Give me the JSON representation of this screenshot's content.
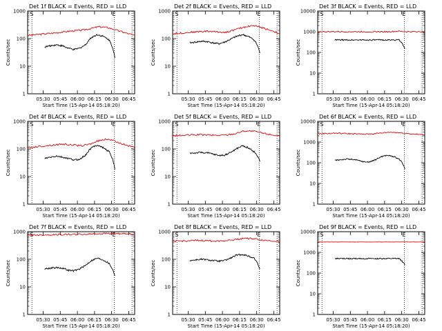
{
  "chart_data": [
    {
      "type": "line",
      "title": "Det 1f BLACK = Events, RED = LLD",
      "xlabel": "Start Time (15-Apr-14 05:18:20)",
      "ylabel": "Counts/sec",
      "ylim": [
        1,
        1000
      ],
      "yscale": "log",
      "x_ticks": [
        "05:30",
        "05:45",
        "06:00",
        "06:15",
        "06:30",
        "06:45"
      ],
      "y_ticks": [
        "1",
        "10",
        "100",
        "1000"
      ],
      "markers": [
        "S",
        "E"
      ],
      "series": [
        {
          "name": "LLD",
          "color": "#e00000",
          "values": [
            130,
            140,
            150,
            160,
            175,
            190,
            200,
            230,
            270,
            250,
            200,
            160,
            130
          ]
        },
        {
          "name": "Events",
          "color": "#000000",
          "values": [
            50,
            55,
            60,
            55,
            45,
            40,
            45,
            60,
            110,
            140,
            120,
            90,
            20
          ]
        }
      ]
    },
    {
      "type": "line",
      "title": "Det 2f BLACK = Events, RED = LLD",
      "xlabel": "Start Time (15-Apr-14 05:18:20)",
      "ylabel": "Counts/sec",
      "ylim": [
        1,
        1000
      ],
      "yscale": "log",
      "x_ticks": [
        "05:30",
        "05:45",
        "06:00",
        "06:15",
        "06:30",
        "06:45"
      ],
      "y_ticks": [
        "1",
        "10",
        "100",
        "1000"
      ],
      "markers": [
        "S",
        "E"
      ],
      "series": [
        {
          "name": "LLD",
          "color": "#e00000",
          "values": [
            150,
            160,
            170,
            180,
            185,
            175,
            170,
            210,
            260,
            300,
            250,
            200,
            150
          ]
        },
        {
          "name": "Events",
          "color": "#000000",
          "values": [
            70,
            75,
            80,
            78,
            70,
            65,
            75,
            95,
            120,
            140,
            120,
            90,
            30
          ]
        }
      ]
    },
    {
      "type": "line",
      "title": "Det 3f BLACK = Events, RED = LLD",
      "xlabel": "Start Time (15-Apr-14 05:18:20)",
      "ylabel": "Counts/sec",
      "ylim": [
        1,
        10000
      ],
      "yscale": "log",
      "x_ticks": [
        "05:30",
        "05:45",
        "06:00",
        "06:15",
        "06:30",
        "06:45"
      ],
      "y_ticks": [
        "1",
        "10",
        "100",
        "1000",
        "10000"
      ],
      "markers": [
        "S",
        "E"
      ],
      "series": [
        {
          "name": "LLD",
          "color": "#e00000",
          "values": [
            1000,
            1000,
            1000,
            1000,
            1000,
            1000,
            1000,
            1000,
            1000,
            1050,
            1000,
            1000,
            1000
          ]
        },
        {
          "name": "Events",
          "color": "#000000",
          "values": [
            400,
            400,
            400,
            400,
            400,
            400,
            400,
            400,
            400,
            400,
            400,
            400,
            150
          ]
        }
      ]
    },
    {
      "type": "line",
      "title": "Det 4f BLACK = Events, RED = LLD",
      "xlabel": "Start Time (15-Apr-14 05:18:20)",
      "ylabel": "Counts/sec",
      "ylim": [
        1,
        1000
      ],
      "yscale": "log",
      "x_ticks": [
        "05:30",
        "05:45",
        "06:00",
        "06:15",
        "06:30",
        "06:45"
      ],
      "y_ticks": [
        "1",
        "10",
        "100",
        "1000"
      ],
      "markers": [
        "S",
        "E"
      ],
      "series": [
        {
          "name": "LLD",
          "color": "#e00000",
          "values": [
            110,
            120,
            130,
            140,
            150,
            140,
            130,
            150,
            200,
            230,
            180,
            140,
            110
          ]
        },
        {
          "name": "Events",
          "color": "#000000",
          "values": [
            45,
            50,
            55,
            50,
            45,
            40,
            42,
            60,
            110,
            140,
            110,
            80,
            18
          ]
        }
      ]
    },
    {
      "type": "line",
      "title": "Det 5f BLACK = Events, RED = LLD",
      "xlabel": "Start Time (15-Apr-14 05:18:20)",
      "ylabel": "Counts/sec",
      "ylim": [
        1,
        1000
      ],
      "yscale": "log",
      "x_ticks": [
        "05:30",
        "05:45",
        "06:00",
        "06:15",
        "06:30",
        "06:45"
      ],
      "y_ticks": [
        "1",
        "10",
        "100",
        "1000"
      ],
      "markers": [
        "S",
        "E"
      ],
      "series": [
        {
          "name": "LLD",
          "color": "#e00000",
          "values": [
            300,
            310,
            320,
            330,
            320,
            310,
            320,
            360,
            450,
            440,
            380,
            330,
            300
          ]
        },
        {
          "name": "Events",
          "color": "#000000",
          "values": [
            70,
            72,
            75,
            72,
            65,
            58,
            60,
            75,
            100,
            130,
            110,
            80,
            35
          ]
        }
      ]
    },
    {
      "type": "line",
      "title": "Det 6f BLACK = Events, RED = LLD",
      "xlabel": "Start Time (15-Apr-14 05:18:20)",
      "ylabel": "Counts/sec",
      "ylim": [
        1,
        10000
      ],
      "yscale": "log",
      "x_ticks": [
        "05:30",
        "05:45",
        "06:00",
        "06:15",
        "06:30",
        "06:45"
      ],
      "y_ticks": [
        "1",
        "10",
        "100",
        "1000",
        "10000"
      ],
      "markers": [
        "S",
        "E"
      ],
      "series": [
        {
          "name": "LLD",
          "color": "#e00000",
          "values": [
            2500,
            2600,
            2700,
            2600,
            2500,
            2400,
            2500,
            2700,
            3000,
            2900,
            2600,
            2400,
            2200
          ]
        },
        {
          "name": "Events",
          "color": "#000000",
          "values": [
            130,
            140,
            150,
            145,
            130,
            110,
            110,
            140,
            200,
            230,
            200,
            150,
            50
          ]
        }
      ]
    },
    {
      "type": "line",
      "title": "Det 7f BLACK = Events, RED = LLD",
      "xlabel": "Start Time (15-Apr-14 05:18:20)",
      "ylabel": "Counts/sec",
      "ylim": [
        1,
        1000
      ],
      "yscale": "log",
      "x_ticks": [
        "05:30",
        "05:45",
        "06:00",
        "06:15",
        "06:30",
        "06:45"
      ],
      "y_ticks": [
        "1",
        "10",
        "100",
        "1000"
      ],
      "markers": [
        "S",
        "E"
      ],
      "series": [
        {
          "name": "LLD",
          "color": "#e00000",
          "values": [
            750,
            760,
            770,
            780,
            790,
            800,
            800,
            820,
            850,
            870,
            860,
            830,
            820
          ]
        },
        {
          "name": "Events",
          "color": "#000000",
          "values": [
            45,
            48,
            50,
            48,
            40,
            38,
            45,
            60,
            90,
            110,
            95,
            70,
            25
          ]
        }
      ]
    },
    {
      "type": "line",
      "title": "Det 8f BLACK = Events, RED = LLD",
      "xlabel": "Start Time (15-Apr-14 05:18:20)",
      "ylabel": "Counts/sec",
      "ylim": [
        1,
        1000
      ],
      "yscale": "log",
      "x_ticks": [
        "05:30",
        "05:45",
        "06:00",
        "06:15",
        "06:30",
        "06:45"
      ],
      "y_ticks": [
        "1",
        "10",
        "100",
        "1000"
      ],
      "markers": [
        "S",
        "E"
      ],
      "series": [
        {
          "name": "LLD",
          "color": "#e00000",
          "values": [
            450,
            460,
            470,
            480,
            470,
            460,
            480,
            520,
            580,
            560,
            500,
            470,
            450
          ]
        },
        {
          "name": "Events",
          "color": "#000000",
          "values": [
            90,
            95,
            100,
            95,
            90,
            85,
            90,
            110,
            140,
            150,
            130,
            110,
            45
          ]
        }
      ]
    },
    {
      "type": "line",
      "title": "Det 9f BLACK = Events, RED = LLD",
      "xlabel": "Start Time (15-Apr-14 05:18:20)",
      "ylabel": "Counts/sec",
      "ylim": [
        1,
        10000
      ],
      "yscale": "log",
      "x_ticks": [
        "05:30",
        "05:45",
        "06:00",
        "06:15",
        "06:30",
        "06:45"
      ],
      "y_ticks": [
        "1",
        "10",
        "100",
        "1000",
        "10000"
      ],
      "markers": [
        "S",
        "E"
      ],
      "series": [
        {
          "name": "LLD",
          "color": "#e00000",
          "values": [
            3200,
            3200,
            3200,
            3200,
            3200,
            3200,
            3200,
            3200,
            3200,
            3200,
            3200,
            3200,
            3200
          ]
        },
        {
          "name": "Events",
          "color": "#000000",
          "values": [
            500,
            500,
            500,
            500,
            500,
            500,
            500,
            500,
            500,
            500,
            500,
            500,
            250
          ]
        }
      ]
    }
  ]
}
